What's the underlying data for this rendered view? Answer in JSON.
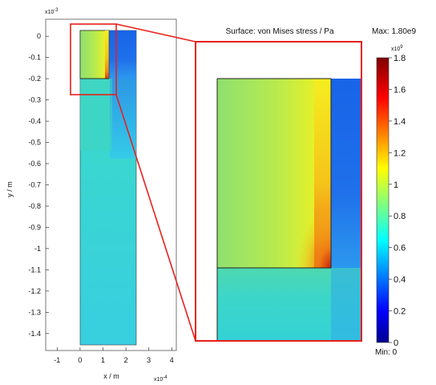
{
  "chart_data": {
    "type": "heatmap",
    "title": "Surface: von Mises stress / Pa",
    "max_label": "Max: 1.80e9",
    "min_label": "Min: 0",
    "xlabel": "x / m",
    "ylabel": "y / m",
    "x_exponent": "x10",
    "x_exponent_power": "-4",
    "y_exponent": "x10",
    "y_exponent_power": "-3",
    "colorbar_exponent": "x10",
    "colorbar_exponent_power": "9",
    "xlim": [
      -1.5,
      4.2
    ],
    "ylim": [
      -1.48,
      0.08
    ],
    "x_ticks": [
      -1,
      0,
      1,
      2,
      3,
      4
    ],
    "x_tick_labels": [
      "-1",
      "0",
      "1",
      "2",
      "3",
      "4"
    ],
    "y_ticks": [
      0,
      -0.1,
      -0.2,
      -0.3,
      -0.4,
      -0.5,
      -0.6,
      -0.7,
      -0.8,
      -0.9,
      -1,
      -1.1,
      -1.2,
      -1.3,
      -1.4
    ],
    "y_tick_labels": [
      "0",
      "-0.1",
      "-0.2",
      "-0.3",
      "-0.4",
      "-0.5",
      "-0.6",
      "-0.7",
      "-0.8",
      "-0.9",
      "-1",
      "-1.1",
      "-1.2",
      "-1.3",
      "-1.4"
    ],
    "colorbar_range": [
      0,
      1.8
    ],
    "colorbar_ticks": [
      0,
      0.2,
      0.4,
      0.6,
      0.8,
      1,
      1.2,
      1.4,
      1.6,
      1.8
    ],
    "colorbar_tick_labels": [
      "0",
      "0.2",
      "0.4",
      "0.6",
      "0.8",
      "1",
      "1.2",
      "1.4",
      "1.6",
      "1.8"
    ],
    "colormap": "jet",
    "domain_outer_x": [
      0,
      2.5
    ],
    "domain_outer_y": [
      -1.4,
      0
    ],
    "inner_block_x": [
      0,
      1.3
    ],
    "inner_block_y": [
      -0.21,
      0
    ],
    "zoom_region_x": [
      -0.5,
      1.7
    ],
    "zoom_region_y": [
      -0.28,
      0.03
    ],
    "colors": {
      "zoom_frame": "#e8201c",
      "axis_frame": "#333333"
    }
  }
}
